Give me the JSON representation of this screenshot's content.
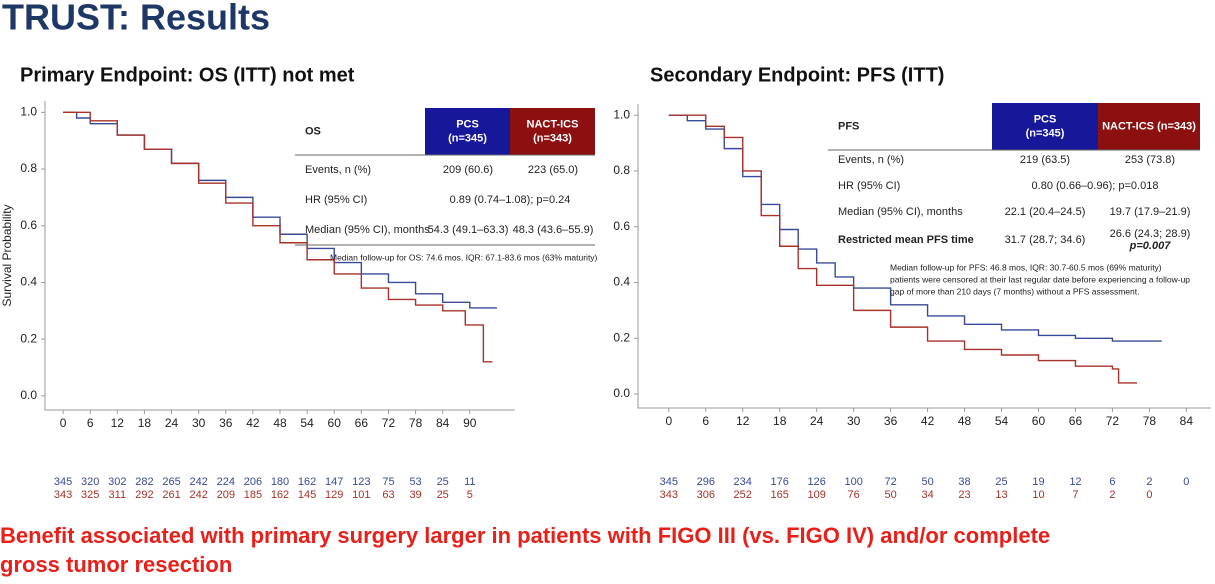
{
  "slide": {
    "title": "TRUST: Results",
    "conclusion": [
      "Benefit associated with primary surgery larger in patients with FIGO III (vs. FIGO IV) and/or complete",
      "gross tumor resection"
    ]
  },
  "chart_data": [
    {
      "type": "line",
      "step": true,
      "title": "Primary Endpoint: OS (ITT) not met",
      "y_label": "Survival Probability",
      "xlim": [
        -4,
        100
      ],
      "xticks": [
        0,
        6,
        12,
        18,
        24,
        30,
        36,
        42,
        48,
        54,
        60,
        66,
        72,
        78,
        84,
        90
      ],
      "ylim": [
        -0.05,
        1.04
      ],
      "yticks": [
        {
          "value": 0,
          "label": "0.0"
        },
        {
          "value": 0.2,
          "label": "0.2"
        },
        {
          "value": 0.4,
          "label": "0.4"
        },
        {
          "value": 0.6,
          "label": "0.6"
        },
        {
          "value": 0.8,
          "label": "0.8"
        },
        {
          "value": 1,
          "label": "1.0"
        }
      ],
      "series": [
        {
          "name": "PCS",
          "color": "#3a4a9a",
          "x": [
            0,
            3,
            6,
            12,
            18,
            24,
            30,
            36,
            42,
            48,
            54,
            60,
            66,
            72,
            78,
            84,
            90,
            96
          ],
          "values": [
            1,
            0.98,
            0.96,
            0.92,
            0.87,
            0.82,
            0.76,
            0.7,
            0.63,
            0.57,
            0.52,
            0.47,
            0.43,
            0.4,
            0.36,
            0.33,
            0.31,
            0.31
          ],
          "at_risk": [
            345,
            320,
            302,
            282,
            265,
            242,
            224,
            206,
            180,
            162,
            147,
            123,
            75,
            53,
            25,
            11
          ]
        },
        {
          "name": "NACT-ICS",
          "color": "#a8322a",
          "x": [
            0,
            6,
            12,
            18,
            24,
            30,
            36,
            42,
            48,
            54,
            60,
            66,
            72,
            78,
            84,
            88,
            89,
            92,
            93,
            95
          ],
          "values": [
            1,
            0.97,
            0.92,
            0.87,
            0.82,
            0.75,
            0.68,
            0.6,
            0.54,
            0.48,
            0.43,
            0.38,
            0.34,
            0.32,
            0.3,
            0.3,
            0.25,
            0.25,
            0.12,
            0.12
          ],
          "at_risk": [
            343,
            325,
            311,
            292,
            261,
            242,
            209,
            185,
            162,
            145,
            129,
            101,
            63,
            39,
            25,
            5
          ]
        }
      ],
      "table": {
        "label": "OS",
        "headers": [
          [
            "PCS",
            "(n=345)"
          ],
          [
            "NACT-ICS",
            "(n=343)"
          ]
        ],
        "rows": [
          [
            "Events, n (%)",
            "209 (60.6)",
            "223 (65.0)"
          ],
          [
            "HR (95% CI)",
            "0.89 (0.74–1.08); p=0.24"
          ],
          [
            "Median (95% CI), months",
            "54.3 (49.1–63.3)",
            "48.3 (43.6–55.9)"
          ]
        ],
        "note": [
          "Median  follow-up for OS: 74.6 mos, IQR: 67.1-83.6 mos (63% maturity)"
        ]
      }
    },
    {
      "type": "line",
      "step": true,
      "title": "Secondary Endpoint: PFS (ITT)",
      "xlim": [
        -5,
        88
      ],
      "xticks": [
        0,
        6,
        12,
        18,
        24,
        30,
        36,
        42,
        48,
        54,
        60,
        66,
        72,
        78,
        84
      ],
      "ylim": [
        -0.05,
        1.04
      ],
      "yticks": [
        {
          "value": 0,
          "label": "0.0"
        },
        {
          "value": 0.2,
          "label": "0.2"
        },
        {
          "value": 0.4,
          "label": "0.4"
        },
        {
          "value": 0.6,
          "label": "0.6"
        },
        {
          "value": 0.8,
          "label": "0.8"
        },
        {
          "value": 1,
          "label": "1.0"
        }
      ],
      "series": [
        {
          "name": "PCS",
          "color": "#3a4a9a",
          "x": [
            0,
            3,
            6,
            9,
            12,
            15,
            18,
            21,
            24,
            27,
            30,
            36,
            42,
            48,
            54,
            60,
            66,
            72,
            80
          ],
          "values": [
            1,
            0.98,
            0.95,
            0.88,
            0.78,
            0.68,
            0.59,
            0.52,
            0.47,
            0.42,
            0.38,
            0.32,
            0.28,
            0.25,
            0.23,
            0.21,
            0.2,
            0.19,
            0.19
          ],
          "at_risk": [
            345,
            296,
            234,
            176,
            126,
            100,
            72,
            50,
            38,
            25,
            19,
            12,
            6,
            2,
            0
          ]
        },
        {
          "name": "NACT-ICS",
          "color": "#a8322a",
          "x": [
            0,
            6,
            9,
            12,
            15,
            18,
            21,
            24,
            30,
            36,
            42,
            48,
            54,
            60,
            66,
            72,
            73,
            76
          ],
          "values": [
            1,
            0.96,
            0.92,
            0.8,
            0.64,
            0.53,
            0.45,
            0.39,
            0.3,
            0.24,
            0.19,
            0.16,
            0.14,
            0.12,
            0.1,
            0.09,
            0.04,
            0.04
          ],
          "at_risk": [
            343,
            306,
            252,
            165,
            109,
            76,
            50,
            34,
            23,
            13,
            10,
            7,
            2,
            0
          ]
        }
      ],
      "table": {
        "label": "PFS",
        "headers": [
          [
            "PCS",
            "(n=345)"
          ],
          [
            "NACT-ICS (n=343)"
          ]
        ],
        "rows": [
          [
            "Events, n (%)",
            "219 (63.5)",
            "253 (73.8)"
          ],
          [
            "HR (95% CI)",
            "0.80 (0.66–0.96); p=0.018"
          ],
          [
            "Median (95% CI), months",
            "22.1 (20.4–24.5)",
            "19.7 (17.9–21.9)"
          ],
          [
            "Restricted mean PFS time",
            "31.7 (28.7; 34.6)",
            [
              "26.6 (24.3; 28.9)",
              "p=0.007"
            ]
          ]
        ],
        "note": [
          "Median  follow-up for PFS: 46.8 mos, IQR: 30.7-60.5 mos (69% maturity)",
          "patients were censored at their last regular date before experiencing a follow-up",
          "gap of more than 210 days (7 months) without a PFS assessment."
        ]
      }
    }
  ]
}
